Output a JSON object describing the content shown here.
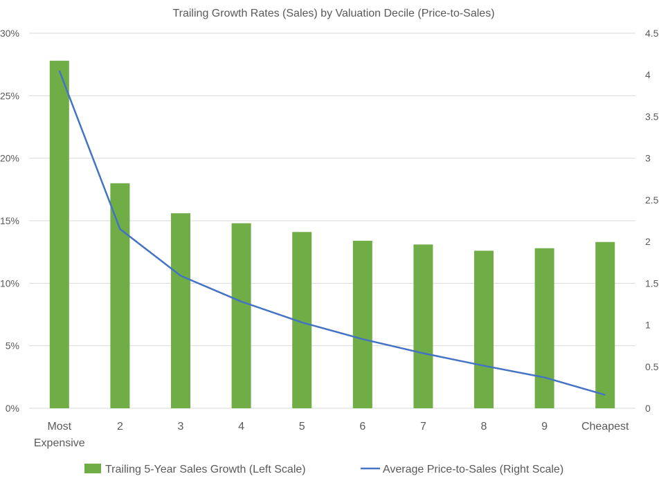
{
  "chart_data": {
    "type": "bar",
    "title": "Trailing Growth Rates (Sales) by Valuation Decile (Price-to-Sales)",
    "categories": [
      [
        "Most",
        "Expensive"
      ],
      [
        "2"
      ],
      [
        "3"
      ],
      [
        "4"
      ],
      [
        "5"
      ],
      [
        "6"
      ],
      [
        "7"
      ],
      [
        "8"
      ],
      [
        "9"
      ],
      [
        "Cheapest"
      ]
    ],
    "series": [
      {
        "name": "Trailing 5-Year Sales Growth (Left Scale)",
        "type": "bar",
        "axis": "left",
        "color": "#70AD47",
        "values": [
          27.8,
          18.0,
          15.6,
          14.8,
          14.1,
          13.4,
          13.1,
          12.6,
          12.8,
          13.3
        ]
      },
      {
        "name": "Average Price-to-Sales (Right Scale)",
        "type": "line",
        "axis": "right",
        "color": "#4472C4",
        "values": [
          4.05,
          2.15,
          1.59,
          1.28,
          1.03,
          0.83,
          0.66,
          0.51,
          0.37,
          0.16
        ]
      }
    ],
    "y_left": {
      "range": [
        0,
        30
      ],
      "ticks": [
        0,
        5,
        10,
        15,
        20,
        25,
        30
      ],
      "tick_labels": [
        "0%",
        "5%",
        "10%",
        "15%",
        "20%",
        "25%",
        "30%"
      ]
    },
    "y_right": {
      "range": [
        0,
        4.5
      ],
      "ticks": [
        0,
        0.5,
        1,
        1.5,
        2,
        2.5,
        3,
        3.5,
        4,
        4.5
      ],
      "tick_labels": [
        "0",
        "0.5",
        "1",
        "1.5",
        "2",
        "2.5",
        "3",
        "3.5",
        "4",
        "4.5"
      ]
    },
    "grid": true,
    "legend_position": "bottom"
  }
}
